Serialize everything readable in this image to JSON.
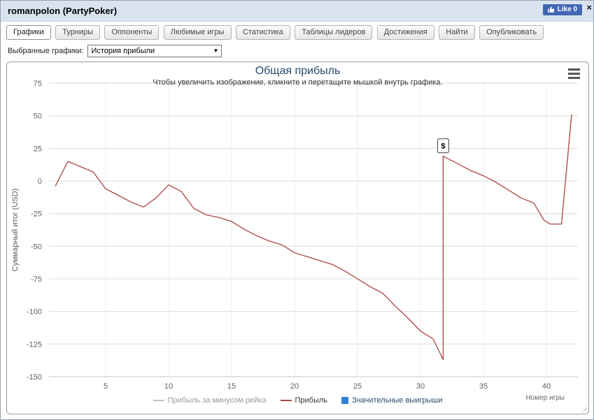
{
  "colors": {
    "header_band": "#d9e3f0",
    "fb_blue": "#4267b2",
    "title_blue": "#274b6d",
    "profit_line_red": "#aa4643",
    "rake_line_gray": "#c0c0c0",
    "big_win_blue": "#2f7ed8"
  },
  "header": {
    "title": "romanpolon (PartyPoker)",
    "like_label": "Like 0",
    "close_glyph": "×"
  },
  "tabs": [
    {
      "label": "Графики",
      "active": true
    },
    {
      "label": "Турниры",
      "active": false
    },
    {
      "label": "Оппоненты",
      "active": false
    },
    {
      "label": "Любимые игры",
      "active": false
    },
    {
      "label": "Статистика",
      "active": false
    },
    {
      "label": "Таблицы лидеров",
      "active": false
    },
    {
      "label": "Достижения",
      "active": false
    },
    {
      "label": "Найти",
      "active": false
    },
    {
      "label": "Опубликовать",
      "active": false
    }
  ],
  "filter": {
    "label": "Выбранные графики:",
    "selected": "История прибыли"
  },
  "chart_data": {
    "type": "line",
    "title": "Общая прибыль",
    "subtitle": "Чтобы увеличить изображение, кликните и перетащите мышкой внутрь графика.",
    "xlabel": "Номер игры",
    "ylabel": "Суммарный итог (USD)",
    "xlim": [
      0.5,
      42.5
    ],
    "ylim": [
      -150,
      75
    ],
    "xticks": [
      5,
      10,
      15,
      20,
      25,
      30,
      35,
      40
    ],
    "yticks": [
      75,
      50,
      25,
      0,
      -25,
      -50,
      -75,
      -100,
      -125,
      -150
    ],
    "grid": true,
    "legend_position": "bottom",
    "legend": [
      {
        "label": "Прибыль за минусом рейка",
        "color": "#c0c0c0",
        "type": "line"
      },
      {
        "label": "Прибыль",
        "color": "#aa4643",
        "type": "line"
      },
      {
        "label": "Значительные выигрыши",
        "color": "#2f7ed8",
        "type": "square"
      }
    ],
    "series": [
      {
        "name": "Прибыль",
        "color": "#aa4643",
        "points": [
          [
            1,
            -4
          ],
          [
            2,
            15
          ],
          [
            3,
            11
          ],
          [
            4,
            7
          ],
          [
            5,
            -6
          ],
          [
            6,
            -11
          ],
          [
            7,
            -16
          ],
          [
            8,
            -20
          ],
          [
            9,
            -13
          ],
          [
            10,
            -3
          ],
          [
            11,
            -8
          ],
          [
            12,
            -21
          ],
          [
            13,
            -26
          ],
          [
            14,
            -28
          ],
          [
            15,
            -31
          ],
          [
            16,
            -37
          ],
          [
            17,
            -42
          ],
          [
            18,
            -46
          ],
          [
            19,
            -49
          ],
          [
            20,
            -55
          ],
          [
            21,
            -58
          ],
          [
            22,
            -61
          ],
          [
            23,
            -64
          ],
          [
            24,
            -69
          ],
          [
            25,
            -75
          ],
          [
            26,
            -81
          ],
          [
            27,
            -86
          ],
          [
            28,
            -96
          ],
          [
            29,
            -105
          ],
          [
            30,
            -115
          ],
          [
            31,
            -121
          ],
          [
            31.8,
            -137
          ],
          [
            31.8,
            19
          ],
          [
            33,
            13
          ],
          [
            34,
            8
          ],
          [
            35,
            4
          ],
          [
            36,
            -1
          ],
          [
            37,
            -7
          ],
          [
            38,
            -13
          ],
          [
            39,
            -17
          ],
          [
            39.8,
            -30
          ],
          [
            40.3,
            -33
          ],
          [
            41.2,
            -33
          ],
          [
            42,
            51
          ]
        ]
      }
    ],
    "marker": {
      "x": 31.8,
      "y": 27,
      "label": "$"
    }
  }
}
